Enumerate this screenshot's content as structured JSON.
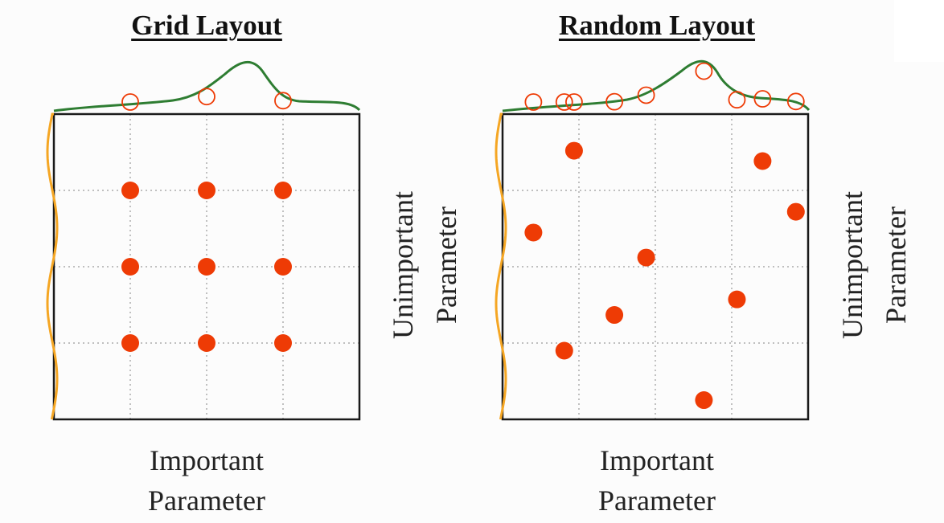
{
  "colors": {
    "point": "#ee3b05",
    "curve_top": "#2e7d32",
    "curve_left": "#f5a623",
    "grid": "#9a9a9a",
    "frame": "#1a1a1a"
  },
  "panels": [
    {
      "title": "Grid Layout",
      "xlabel": [
        "Important",
        "Parameter"
      ],
      "ylabel": [
        "Unimportant",
        "Parameter"
      ],
      "points": [
        {
          "x": 0.25,
          "y": 0.25
        },
        {
          "x": 0.5,
          "y": 0.25
        },
        {
          "x": 0.75,
          "y": 0.25
        },
        {
          "x": 0.25,
          "y": 0.5
        },
        {
          "x": 0.5,
          "y": 0.5
        },
        {
          "x": 0.75,
          "y": 0.5
        },
        {
          "x": 0.25,
          "y": 0.75
        },
        {
          "x": 0.5,
          "y": 0.75
        },
        {
          "x": 0.75,
          "y": 0.75
        }
      ]
    },
    {
      "title": "Random Layout",
      "xlabel": [
        "Important",
        "Parameter"
      ],
      "ylabel": [
        "Unimportant",
        "Parameter"
      ],
      "points": [
        {
          "x": 0.234,
          "y": 0.88
        },
        {
          "x": 0.851,
          "y": 0.846
        },
        {
          "x": 0.96,
          "y": 0.68
        },
        {
          "x": 0.101,
          "y": 0.612
        },
        {
          "x": 0.47,
          "y": 0.53
        },
        {
          "x": 0.767,
          "y": 0.393
        },
        {
          "x": 0.366,
          "y": 0.342
        },
        {
          "x": 0.202,
          "y": 0.225
        },
        {
          "x": 0.659,
          "y": 0.063
        }
      ]
    }
  ]
}
